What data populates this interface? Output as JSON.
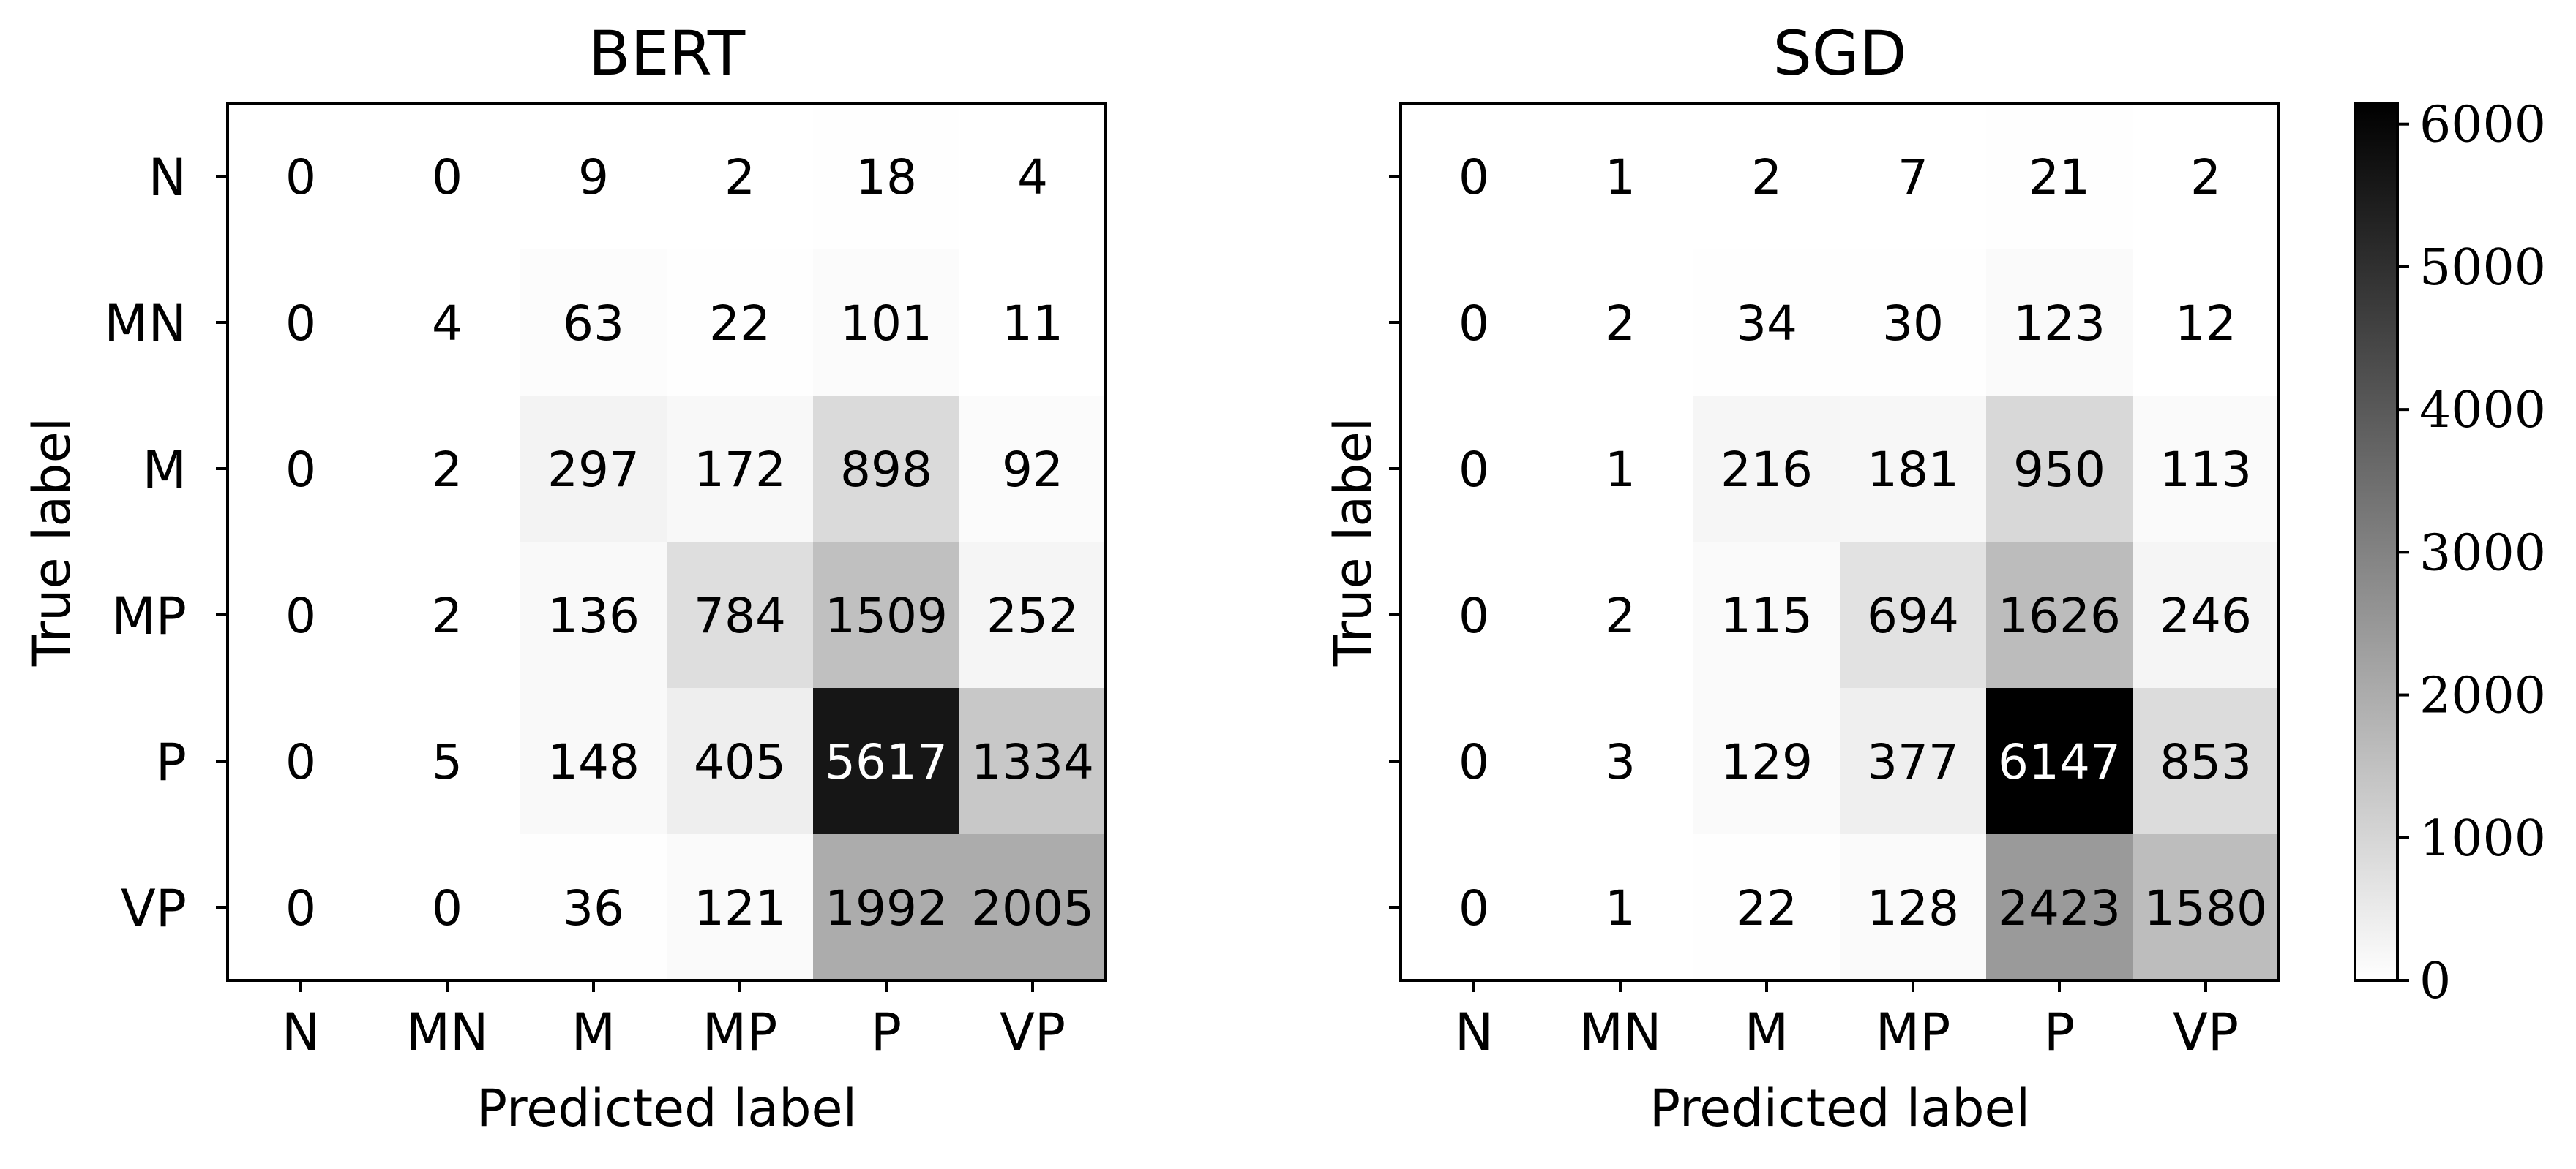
{
  "chart_data": [
    {
      "type": "heatmap",
      "title": "BERT",
      "xlabel": "Predicted label",
      "ylabel": "True label",
      "x_categories": [
        "N",
        "MN",
        "M",
        "MP",
        "P",
        "VP"
      ],
      "y_categories": [
        "N",
        "MN",
        "M",
        "MP",
        "P",
        "VP"
      ],
      "values": [
        [
          0,
          0,
          9,
          2,
          18,
          4
        ],
        [
          0,
          4,
          63,
          22,
          101,
          11
        ],
        [
          0,
          2,
          297,
          172,
          898,
          92
        ],
        [
          0,
          2,
          136,
          784,
          1509,
          252
        ],
        [
          0,
          5,
          148,
          405,
          5617,
          1334
        ],
        [
          0,
          0,
          36,
          121,
          1992,
          2005
        ]
      ]
    },
    {
      "type": "heatmap",
      "title": "SGD",
      "xlabel": "Predicted label",
      "ylabel": "True label",
      "x_categories": [
        "N",
        "MN",
        "M",
        "MP",
        "P",
        "VP"
      ],
      "y_categories": [
        "",
        "",
        "",
        "",
        "",
        ""
      ],
      "values": [
        [
          0,
          1,
          2,
          7,
          21,
          2
        ],
        [
          0,
          2,
          34,
          30,
          123,
          12
        ],
        [
          0,
          1,
          216,
          181,
          950,
          113
        ],
        [
          0,
          2,
          115,
          694,
          1626,
          246
        ],
        [
          0,
          3,
          129,
          377,
          6147,
          853
        ],
        [
          0,
          1,
          22,
          128,
          2423,
          1580
        ]
      ]
    }
  ],
  "colorbar": {
    "min": 0,
    "max": 6147,
    "ticks": [
      0,
      1000,
      2000,
      3000,
      4000,
      5000,
      6000
    ],
    "tick_labels": [
      "0",
      "1000",
      "2000",
      "3000",
      "4000",
      "5000",
      "6000"
    ],
    "colormap": "greys",
    "low_color": "#ffffff",
    "high_color": "#000000"
  }
}
